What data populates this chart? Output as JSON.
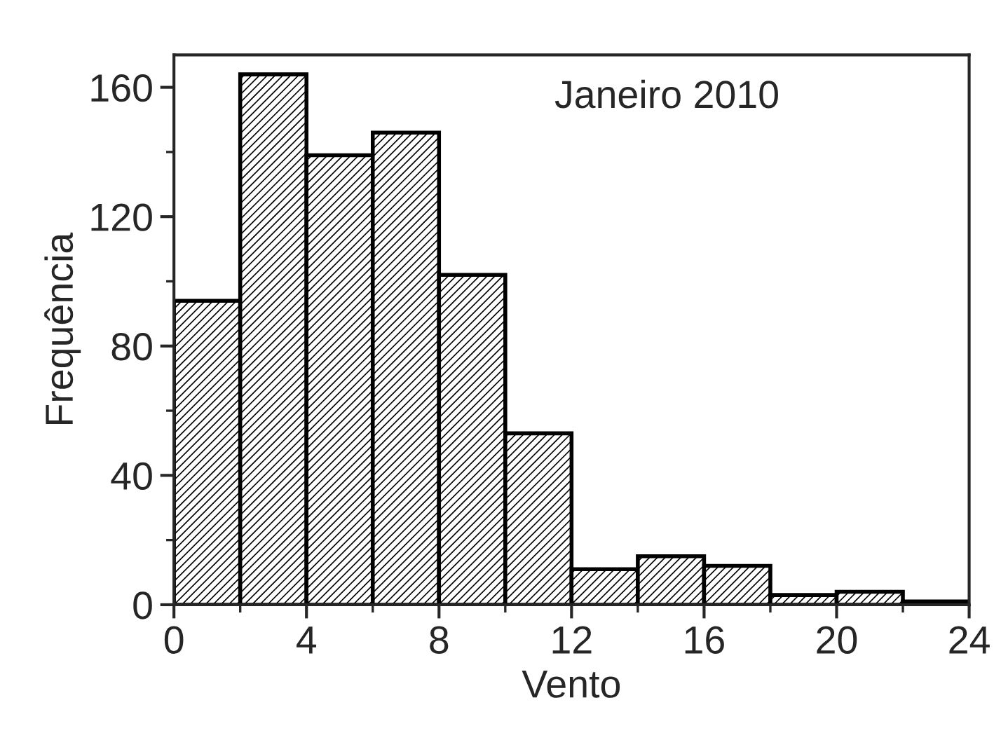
{
  "chart_data": {
    "type": "histogram",
    "title": "Janeiro 2010",
    "xlabel": "Vento",
    "ylabel": "Frequência",
    "bins": [
      0,
      2,
      4,
      6,
      8,
      10,
      12,
      14,
      16,
      18,
      20,
      22,
      24
    ],
    "values": [
      94,
      164,
      139,
      146,
      102,
      53,
      11,
      15,
      12,
      3,
      4,
      1
    ],
    "color": "#000000",
    "xlim": [
      0,
      24
    ],
    "xticks": [
      0,
      4,
      8,
      12,
      16,
      20,
      24
    ],
    "ylim": [
      0,
      170
    ],
    "yticks": [
      0,
      40,
      80,
      120,
      160
    ],
    "grid": false
  }
}
